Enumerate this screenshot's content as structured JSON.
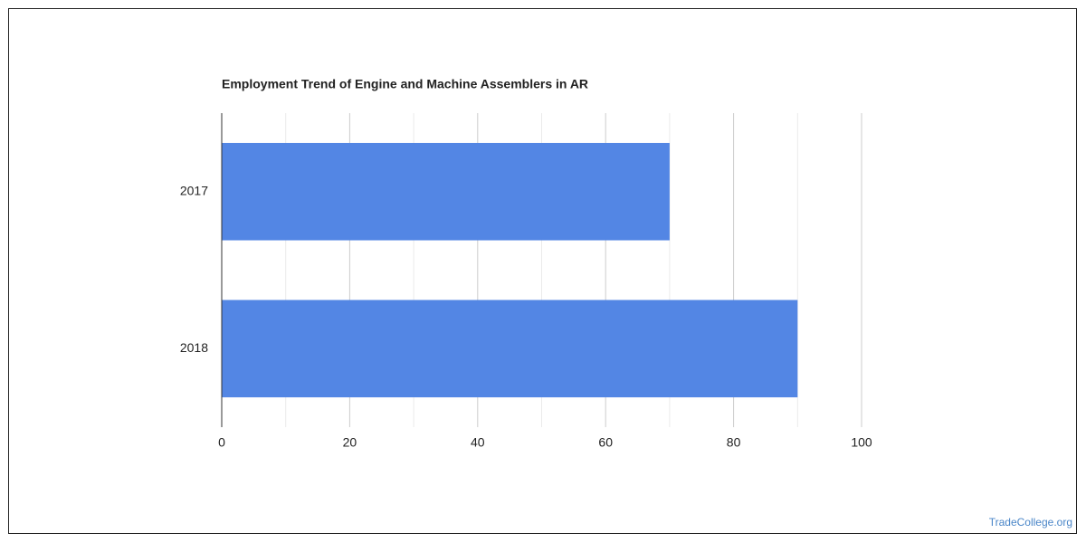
{
  "chart_data": {
    "type": "bar",
    "orientation": "horizontal",
    "title": "Employment Trend of Engine and Machine Assemblers in AR",
    "categories": [
      "2017",
      "2018"
    ],
    "values": [
      70,
      90
    ],
    "color": "#5386e4",
    "xlim": [
      0,
      100
    ],
    "xticks": [
      0,
      20,
      40,
      60,
      80,
      100
    ],
    "xminorticks": [
      10,
      30,
      50,
      70,
      90
    ],
    "grid": true
  },
  "watermark": "TradeCollege.org"
}
